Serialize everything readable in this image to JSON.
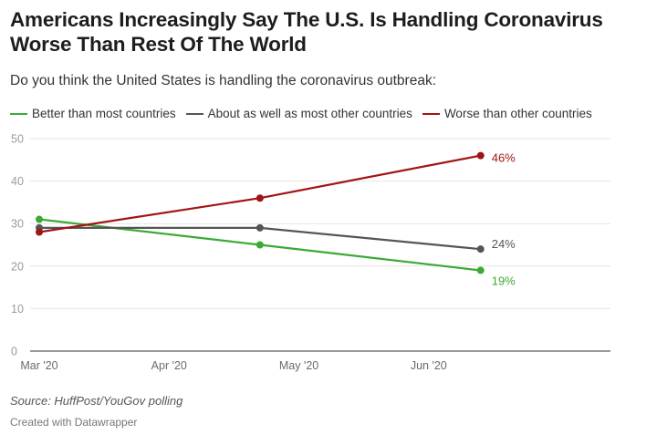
{
  "header": {
    "title": "Americans Increasingly Say The U.S. Is Handling Coronavirus Worse Than Rest Of The World",
    "subtitle": "Do you think the United States is handling the coronavirus outbreak:"
  },
  "footer": {
    "source": "Source: HuffPost/YouGov polling",
    "credit": "Created with Datawrapper"
  },
  "chart_data": {
    "type": "line",
    "title": "Americans Increasingly Say The U.S. Is Handling Coronavirus Worse Than Rest Of The World",
    "subtitle": "Do you think the United States is handling the coronavirus outbreak:",
    "xlabel": "",
    "ylabel": "",
    "ylim": [
      0,
      50
    ],
    "yticks": [
      0,
      10,
      20,
      30,
      40,
      50
    ],
    "xlim": [
      0,
      4.4
    ],
    "xticks": [
      {
        "value": 0,
        "label": "Mar '20"
      },
      {
        "value": 1,
        "label": "Apr '20"
      },
      {
        "value": 2,
        "label": "May '20"
      },
      {
        "value": 3,
        "label": "Jun '20"
      }
    ],
    "x": [
      0,
      1.7,
      3.4
    ],
    "grid": true,
    "legend_position": "top-left",
    "series": [
      {
        "name": "Better than most countries",
        "color": "#3aaa35",
        "values": [
          31,
          25,
          19
        ],
        "end_label": "19%"
      },
      {
        "name": "About as well as most other countries",
        "color": "#555555",
        "values": [
          29,
          29,
          24
        ],
        "end_label": "24%"
      },
      {
        "name": "Worse than other countries",
        "color": "#a11414",
        "values": [
          28,
          36,
          46
        ],
        "end_label": "46%"
      }
    ]
  }
}
